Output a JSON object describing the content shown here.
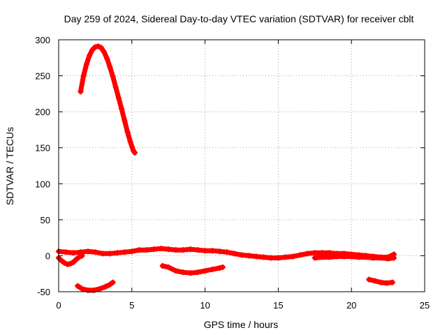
{
  "chart_data": {
    "type": "scatter",
    "title": "Day 259 of 2024, Sidereal Day-to-day VTEC variation (SDTVAR) for receiver cblt",
    "xlabel": "GPS time / hours",
    "ylabel": "SDTVAR / TECUs",
    "xlim": [
      0,
      25
    ],
    "ylim": [
      -50,
      300
    ],
    "xticks": [
      "0",
      "5",
      "10",
      "15",
      "20",
      "25"
    ],
    "yticks": [
      "-50",
      "0",
      "50",
      "100",
      "150",
      "200",
      "250",
      "300"
    ],
    "grid": true,
    "legend": "none",
    "marker": "plus",
    "color": "#ff0000",
    "series": [
      {
        "x": [
          1.5,
          1.7,
          1.9,
          2.1,
          2.3,
          2.5,
          2.7,
          2.9,
          3.1,
          3.3,
          3.5,
          3.7,
          3.9,
          4.1,
          4.3,
          4.5,
          4.7,
          4.9,
          5.1,
          5.2
        ],
        "y": [
          228,
          250,
          266,
          278,
          286,
          290,
          291,
          289,
          283,
          274,
          262,
          249,
          234,
          219,
          204,
          188,
          172,
          158,
          146,
          143
        ]
      },
      {
        "x": [
          0.0,
          0.2,
          0.4,
          0.6,
          0.8,
          1.0,
          1.2,
          1.4,
          1.6
        ],
        "y": [
          -3,
          -7,
          -10,
          -12,
          -11,
          -9,
          -5,
          -2,
          0
        ]
      },
      {
        "x": [
          0.0,
          0.5,
          1.0,
          1.5,
          2.0,
          2.5,
          3.0,
          3.5,
          4.0,
          4.5,
          5.0,
          5.5,
          6.0,
          6.5,
          7.0,
          7.5,
          8.0,
          8.5,
          9.0,
          9.5,
          10.0,
          10.5,
          11.0,
          11.5,
          12.0,
          12.5,
          13.0,
          13.5,
          14.0,
          14.5,
          15.0,
          15.5,
          16.0,
          16.5,
          17.0,
          17.5,
          18.0,
          18.5,
          19.0,
          19.5,
          20.0,
          20.5,
          21.0,
          21.5,
          22.0,
          22.5,
          22.9
        ],
        "y": [
          6,
          5,
          4,
          5,
          6,
          5,
          3,
          3,
          4,
          5,
          6,
          8,
          8,
          9,
          10,
          9,
          8,
          8,
          9,
          8,
          7,
          7,
          6,
          5,
          3,
          1,
          0,
          -1,
          -2,
          -3,
          -3,
          -2,
          -1,
          1,
          3,
          4,
          4,
          4,
          3,
          3,
          2,
          1,
          0,
          -1,
          -2,
          -2,
          2
        ]
      },
      {
        "x": [
          1.3,
          1.6,
          2.0,
          2.4,
          2.8,
          3.2,
          3.5,
          3.7
        ],
        "y": [
          -42,
          -46,
          -48,
          -48,
          -46,
          -43,
          -40,
          -37
        ]
      },
      {
        "x": [
          7.1,
          7.5,
          8.0,
          8.5,
          9.0,
          9.5,
          10.0,
          10.5,
          11.0,
          11.2
        ],
        "y": [
          -14,
          -16,
          -21,
          -23,
          -24,
          -23,
          -21,
          -19,
          -17,
          -16
        ]
      },
      {
        "x": [
          17.5,
          18.0,
          18.5,
          19.0,
          19.5,
          20.0,
          20.5,
          21.0,
          21.5,
          22.0,
          22.5,
          22.9
        ],
        "y": [
          -3,
          -2,
          -2,
          -1,
          -1,
          -1,
          -2,
          -2,
          -3,
          -3,
          -4,
          -3
        ]
      },
      {
        "x": [
          21.2,
          21.6,
          22.0,
          22.4,
          22.8
        ],
        "y": [
          -33,
          -35,
          -37,
          -38,
          -37
        ]
      }
    ]
  }
}
